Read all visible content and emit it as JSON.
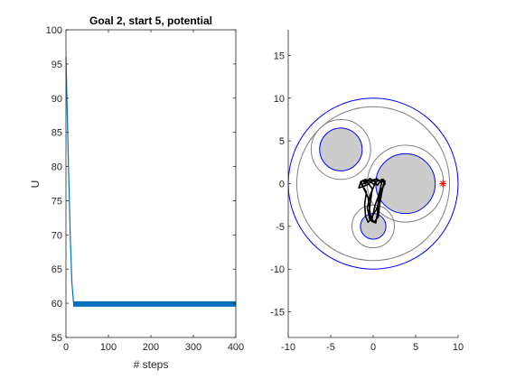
{
  "chart_data": [
    {
      "type": "line",
      "title": "Goal 2, start 5, potential",
      "xlabel": "# steps",
      "ylabel": "U",
      "xlim": [
        0,
        400
      ],
      "ylim": [
        55,
        100
      ],
      "xticks": [
        0,
        100,
        200,
        300,
        400
      ],
      "yticks": [
        55,
        60,
        65,
        70,
        75,
        80,
        85,
        90,
        95,
        100
      ],
      "grid": false,
      "color": "#0072bd",
      "series": [
        {
          "x": [
            0,
            3,
            6,
            10,
            14,
            18,
            400
          ],
          "y": [
            96,
            88,
            80,
            70,
            63,
            60,
            60
          ],
          "oscillation": [
            59.5,
            60.3
          ]
        }
      ]
    },
    {
      "type": "scatter",
      "title": "",
      "xlabel": "",
      "ylabel": "",
      "xlim": [
        -10,
        10
      ],
      "ylim": [
        -18,
        18
      ],
      "xticks": [
        -10,
        -5,
        0,
        5,
        10
      ],
      "yticks": [
        -15,
        -10,
        -5,
        0,
        5,
        10,
        15
      ],
      "grid": false,
      "workspace": {
        "center": [
          0,
          0
        ],
        "radius": 10,
        "color": "#0000ff"
      },
      "outer_boundary": {
        "center": [
          0,
          0
        ],
        "radius": 9,
        "color": "#808080"
      },
      "obstacles": [
        {
          "center": [
            -3.8,
            4
          ],
          "radius": 2.5,
          "halo_radius": 3.5
        },
        {
          "center": [
            3.8,
            0
          ],
          "radius": 3.5,
          "halo_radius": 4.5
        },
        {
          "center": [
            0,
            -5
          ],
          "radius": 1.5,
          "halo_radius": 2.5
        }
      ],
      "obstacle_fill": "#cccccc",
      "obstacle_edge": "#0000ff",
      "halo_color": "#808080",
      "goal": {
        "x": 8.2,
        "y": 0,
        "color": "#ff0000",
        "marker": "*"
      },
      "trajectory_color": "#000000"
    }
  ]
}
